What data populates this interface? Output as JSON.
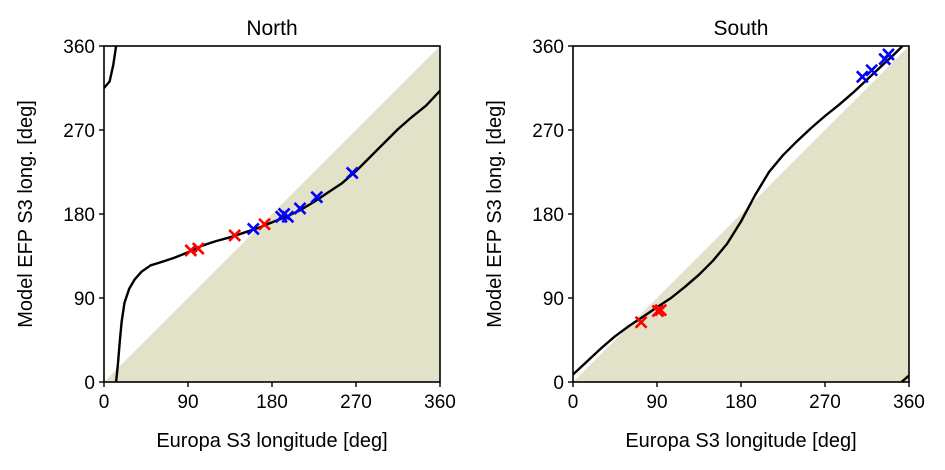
{
  "figure": {
    "xlabel": "Europa S3 longitude [deg]",
    "ylabel": "Model EFP S3 long. [deg]"
  },
  "chart_data": [
    {
      "type": "line",
      "title": "North",
      "xlabel": "Europa S3 longitude [deg]",
      "ylabel": "Model EFP S3 long. [deg]",
      "xlim": [
        0,
        360
      ],
      "ylim": [
        0,
        360
      ],
      "xticks": [
        0,
        90,
        180,
        270,
        360
      ],
      "yticks": [
        0,
        90,
        180,
        270,
        360
      ],
      "shaded_region": "below y = x",
      "colors": {
        "shade": "#e2e2c8",
        "curve": "#000000",
        "red_marker": "#ff0000",
        "blue_marker": "#0000ff"
      },
      "curve_segments": [
        [
          [
            0,
            315
          ],
          [
            6,
            322
          ],
          [
            10,
            340
          ],
          [
            13,
            360
          ]
        ],
        [
          [
            13,
            0
          ],
          [
            15,
            20
          ],
          [
            17,
            45
          ],
          [
            19,
            65
          ],
          [
            22,
            85
          ],
          [
            27,
            100
          ],
          [
            33,
            110
          ],
          [
            40,
            118
          ],
          [
            50,
            125
          ],
          [
            60,
            128
          ],
          [
            75,
            133
          ],
          [
            90,
            139
          ],
          [
            105,
            146
          ],
          [
            120,
            151
          ],
          [
            135,
            155
          ],
          [
            150,
            160
          ],
          [
            165,
            165
          ],
          [
            180,
            171
          ],
          [
            195,
            177
          ],
          [
            210,
            184
          ],
          [
            225,
            193
          ],
          [
            240,
            203
          ],
          [
            255,
            213
          ],
          [
            270,
            226
          ],
          [
            285,
            241
          ],
          [
            300,
            256
          ],
          [
            315,
            271
          ],
          [
            330,
            284
          ],
          [
            345,
            296
          ],
          [
            360,
            312
          ]
        ]
      ],
      "markers": {
        "red": [
          [
            93,
            141
          ],
          [
            101,
            143
          ],
          [
            140,
            157
          ],
          [
            172,
            169
          ]
        ],
        "blue": [
          [
            160,
            164
          ],
          [
            190,
            177
          ],
          [
            193,
            180
          ],
          [
            197,
            177
          ],
          [
            210,
            186
          ],
          [
            228,
            198
          ],
          [
            266,
            224
          ]
        ]
      }
    },
    {
      "type": "line",
      "title": "South",
      "xlabel": "Europa S3 longitude [deg]",
      "ylabel": "Model EFP S3 long. [deg]",
      "xlim": [
        0,
        360
      ],
      "ylim": [
        0,
        360
      ],
      "xticks": [
        0,
        90,
        180,
        270,
        360
      ],
      "yticks": [
        0,
        90,
        180,
        270,
        360
      ],
      "shaded_region": "below y = x",
      "colors": {
        "shade": "#e2e2c8",
        "curve": "#000000",
        "red_marker": "#ff0000",
        "blue_marker": "#0000ff"
      },
      "curve_segments": [
        [
          [
            0,
            8
          ],
          [
            15,
            22
          ],
          [
            30,
            36
          ],
          [
            45,
            49
          ],
          [
            60,
            60
          ],
          [
            75,
            70
          ],
          [
            90,
            80
          ],
          [
            105,
            90
          ],
          [
            120,
            102
          ],
          [
            135,
            115
          ],
          [
            150,
            130
          ],
          [
            165,
            148
          ],
          [
            180,
            172
          ],
          [
            195,
            200
          ],
          [
            210,
            225
          ],
          [
            225,
            243
          ],
          [
            240,
            258
          ],
          [
            255,
            272
          ],
          [
            270,
            285
          ],
          [
            285,
            297
          ],
          [
            300,
            310
          ],
          [
            315,
            324
          ],
          [
            330,
            338
          ],
          [
            345,
            352
          ],
          [
            353,
            360
          ]
        ],
        [
          [
            352,
            0
          ],
          [
            360,
            7
          ]
        ]
      ],
      "markers": {
        "red": [
          [
            73,
            64
          ],
          [
            91,
            76
          ],
          [
            94,
            77
          ]
        ],
        "blue": [
          [
            310,
            327
          ],
          [
            320,
            334
          ],
          [
            334,
            346
          ],
          [
            338,
            351
          ]
        ]
      }
    }
  ]
}
